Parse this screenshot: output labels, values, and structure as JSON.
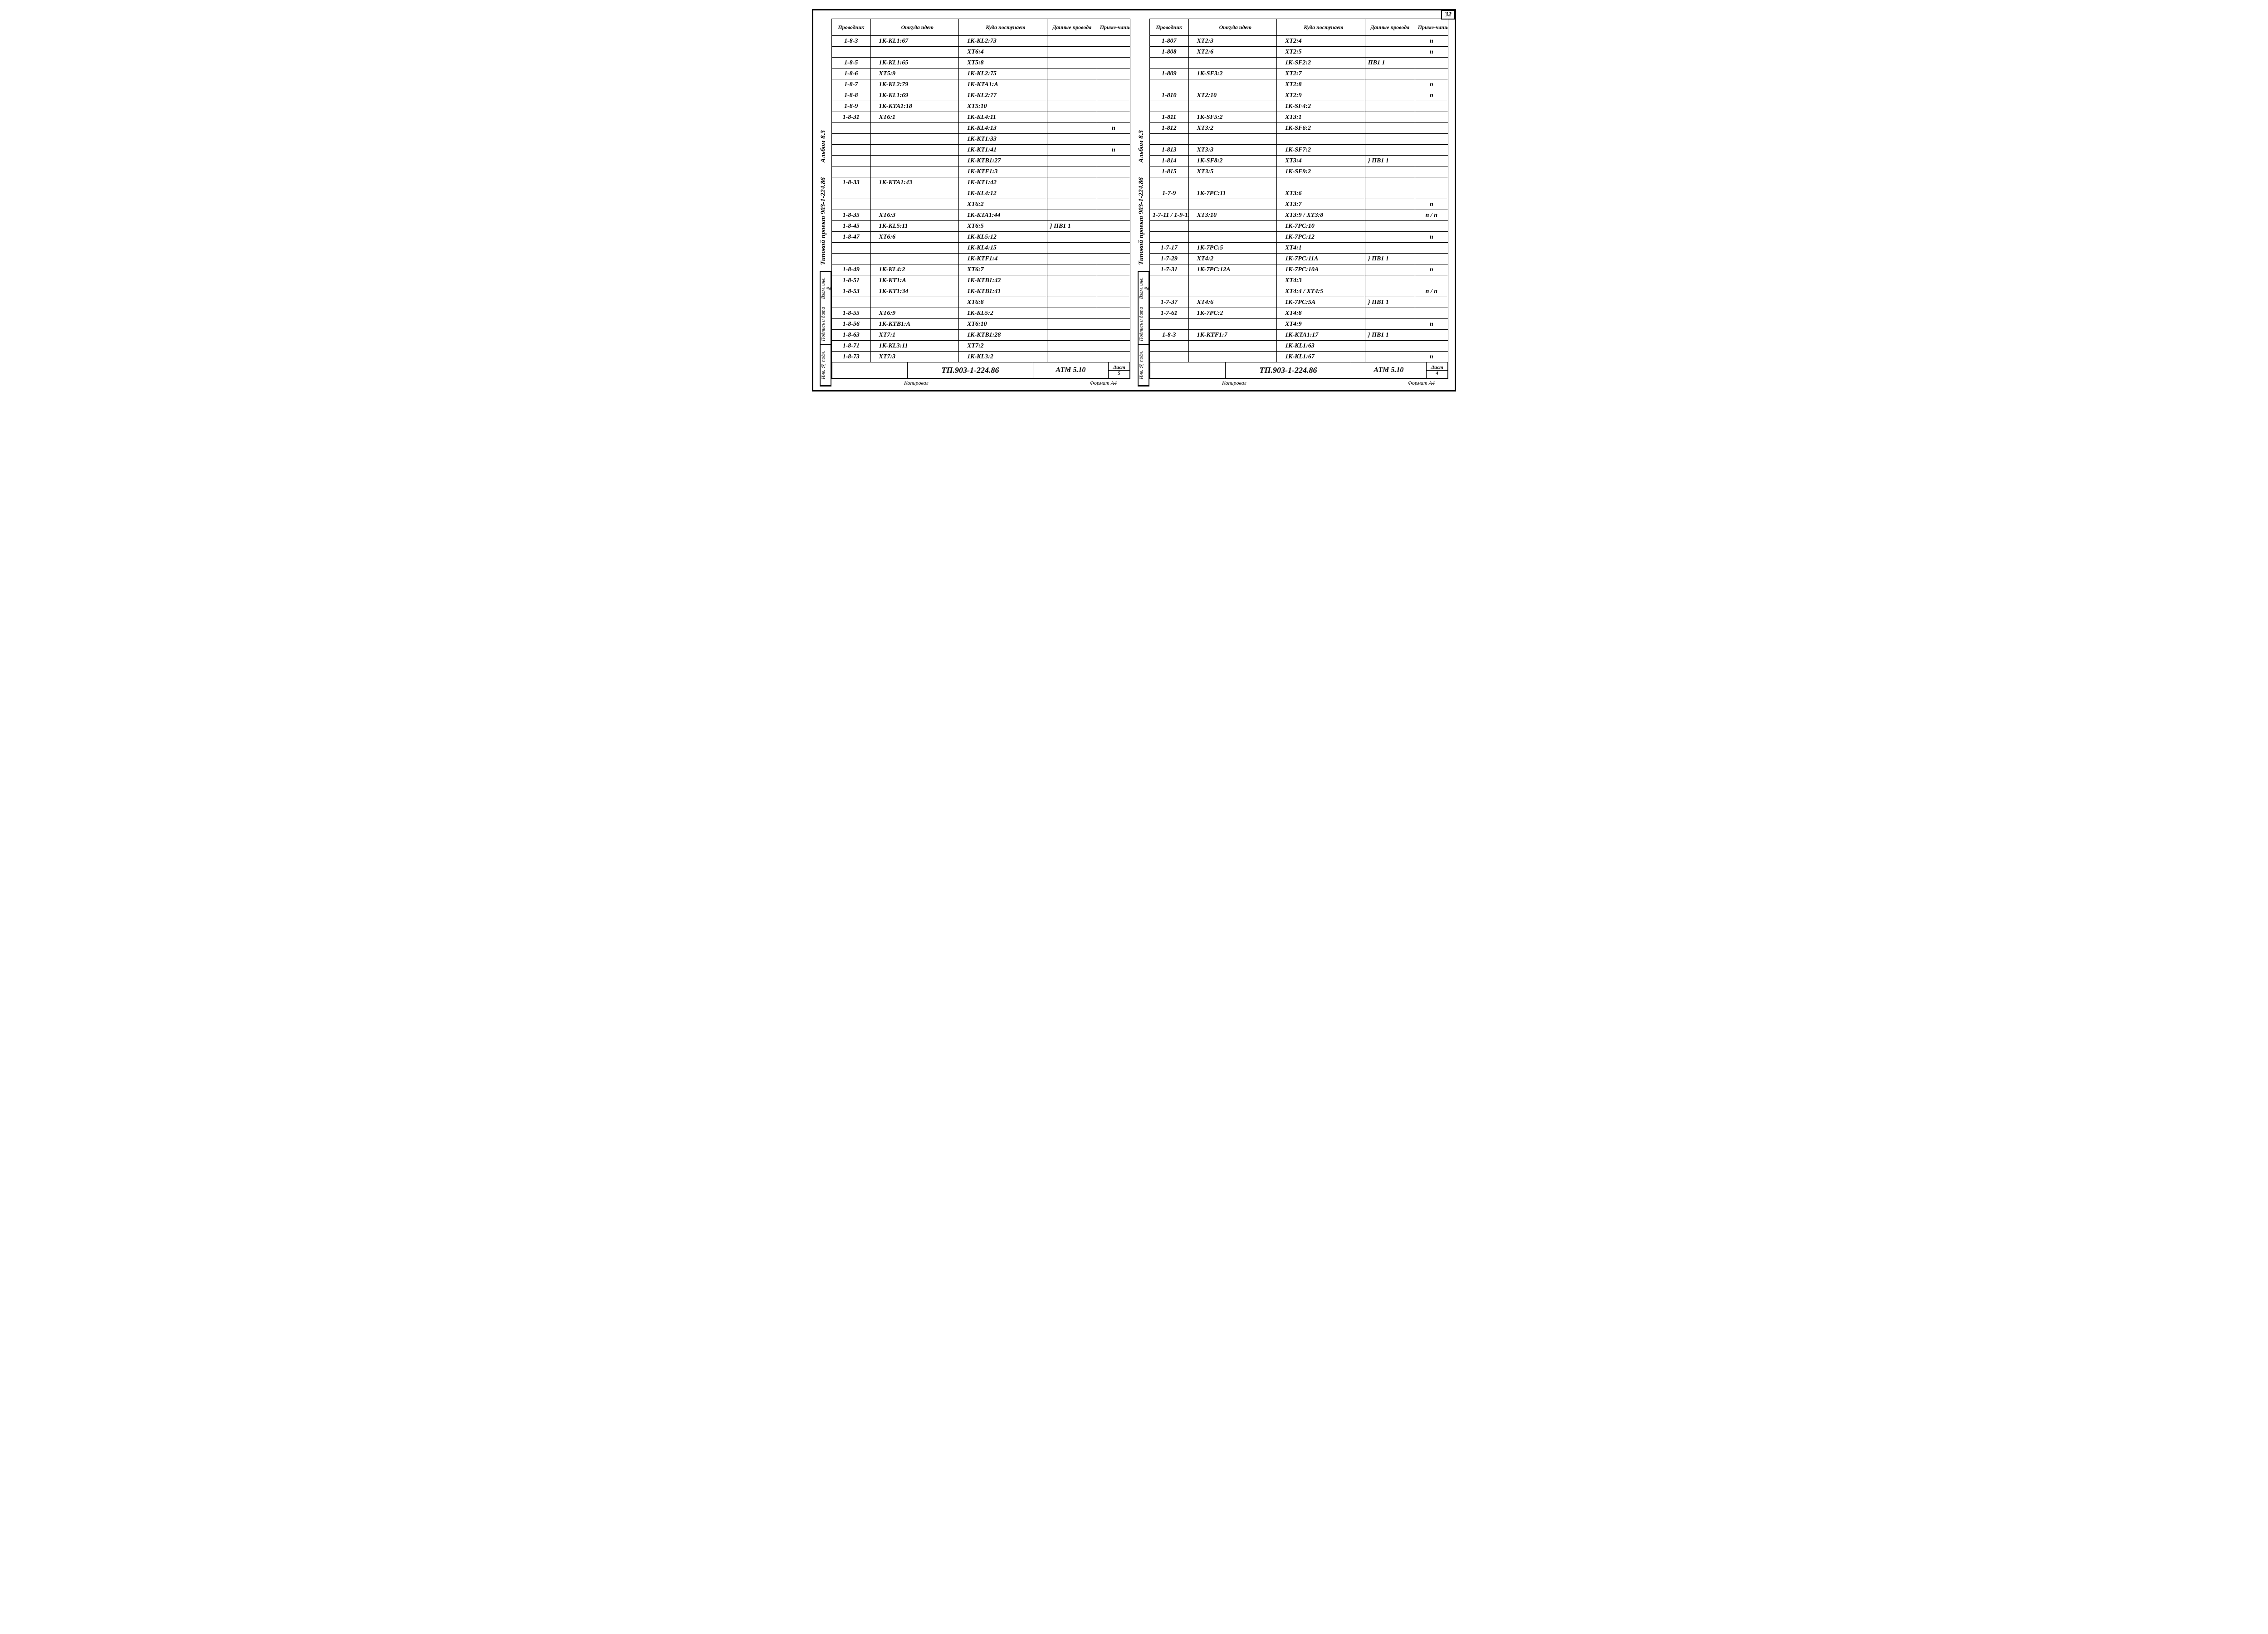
{
  "page_number": "32",
  "shared": {
    "headers": [
      "Проводник",
      "Откуда идет",
      "Куда поступает",
      "Данные провода",
      "Приме-чание"
    ],
    "side_upper": [
      "Альбом 8.3",
      "Типовой проект 903-1-224.86"
    ],
    "side_cells": [
      "Взам. инв. №",
      "Подпись и дата",
      "Инв. № подл."
    ],
    "footer_left": "Копировал",
    "footer_right": "Формат А4",
    "tb_code": "ТП.903-1-224.86",
    "tb_atm": "АТМ 5.10",
    "tb_sheet_label": "Лист"
  },
  "left": {
    "sheet_no": "5",
    "rows": [
      {
        "p": "1-8-3",
        "f": "1К-KL1:67",
        "t": "1К-KL2:73",
        "d": "",
        "n": ""
      },
      {
        "p": "",
        "f": "",
        "t": "ХТ6:4",
        "d": "",
        "n": ""
      },
      {
        "p": "1-8-5",
        "f": "1К-KL1:65",
        "t": "ХТ5:8",
        "d": "",
        "n": ""
      },
      {
        "p": "1-8-6",
        "f": "ХТ5:9",
        "t": "1К-KL2:75",
        "d": "",
        "n": ""
      },
      {
        "p": "1-8-7",
        "f": "1К-KL2:79",
        "t": "1К-КТА1:А",
        "d": "",
        "n": ""
      },
      {
        "p": "1-8-8",
        "f": "1К-KL1:69",
        "t": "1К-KL2:77",
        "d": "",
        "n": ""
      },
      {
        "p": "1-8-9",
        "f": "1К-КТА1:18",
        "t": "ХТ5:10",
        "d": "",
        "n": ""
      },
      {
        "p": "1-8-31",
        "f": "ХТ6:1",
        "t": "1К-KL4:11",
        "d": "",
        "n": ""
      },
      {
        "p": "",
        "f": "",
        "t": "1К-KL4:13",
        "d": "",
        "n": "п"
      },
      {
        "p": "",
        "f": "",
        "t": "1К-КТ1:33",
        "d": "",
        "n": ""
      },
      {
        "p": "",
        "f": "",
        "t": "1К-КТ1:41",
        "d": "",
        "n": "п"
      },
      {
        "p": "",
        "f": "",
        "t": "1К-КТВ1:27",
        "d": "",
        "n": ""
      },
      {
        "p": "",
        "f": "",
        "t": "1К-КТF1:3",
        "d": "",
        "n": ""
      },
      {
        "p": "1-8-33",
        "f": "1К-КТА1:43",
        "t": "1К-КТ1:42",
        "d": "",
        "n": ""
      },
      {
        "p": "",
        "f": "",
        "t": "1К-KL4:12",
        "d": "",
        "n": ""
      },
      {
        "p": "",
        "f": "",
        "t": "ХТ6:2",
        "d": "",
        "n": ""
      },
      {
        "p": "1-8-35",
        "f": "ХТ6:3",
        "t": "1К-КТА1:44",
        "d": "",
        "n": ""
      },
      {
        "p": "1-8-45",
        "f": "1К-KL5:11",
        "t": "ХТ6:5",
        "d": "} ПВ1   1",
        "n": ""
      },
      {
        "p": "1-8-47",
        "f": "ХТ6:6",
        "t": "1К-KL5:12",
        "d": "",
        "n": ""
      },
      {
        "p": "",
        "f": "",
        "t": "1К-KL4:15",
        "d": "",
        "n": ""
      },
      {
        "p": "",
        "f": "",
        "t": "1К-КТF1:4",
        "d": "",
        "n": ""
      },
      {
        "p": "1-8-49",
        "f": "1К-KL4:2",
        "t": "ХТ6:7",
        "d": "",
        "n": ""
      },
      {
        "p": "1-8-51",
        "f": "1К-КТ1:А",
        "t": "1К-КТВ1:42",
        "d": "",
        "n": ""
      },
      {
        "p": "1-8-53",
        "f": "1К-КТ1:34",
        "t": "1К-КТВ1:41",
        "d": "",
        "n": ""
      },
      {
        "p": "",
        "f": "",
        "t": "ХТ6:8",
        "d": "",
        "n": ""
      },
      {
        "p": "1-8-55",
        "f": "ХТ6:9",
        "t": "1К-KL5:2",
        "d": "",
        "n": ""
      },
      {
        "p": "1-8-56",
        "f": "1К-КТВ1:А",
        "t": "ХТ6:10",
        "d": "",
        "n": ""
      },
      {
        "p": "1-8-63",
        "f": "ХТ7:1",
        "t": "1К-КТВ1:28",
        "d": "",
        "n": ""
      },
      {
        "p": "1-8-71",
        "f": "1К-KL3:11",
        "t": "ХТ7:2",
        "d": "",
        "n": ""
      },
      {
        "p": "1-8-73",
        "f": "ХТ7:3",
        "t": "1К-KL3:2",
        "d": "",
        "n": ""
      }
    ]
  },
  "right": {
    "sheet_no": "4",
    "rows": [
      {
        "p": "1-807",
        "f": "ХТ2:3",
        "t": "ХТ2:4",
        "d": "",
        "n": "п"
      },
      {
        "p": "1-808",
        "f": "ХТ2:6",
        "t": "ХТ2:5",
        "d": "",
        "n": "п"
      },
      {
        "p": "",
        "f": "",
        "t": "1К-SF2:2",
        "d": "ПВ1   1",
        "n": ""
      },
      {
        "p": "1-809",
        "f": "1К-SF3:2",
        "t": "ХТ2:7",
        "d": "",
        "n": ""
      },
      {
        "p": "",
        "f": "",
        "t": "ХТ2:8",
        "d": "",
        "n": "п"
      },
      {
        "p": "1-810",
        "f": "ХТ2:10",
        "t": "ХТ2:9",
        "d": "",
        "n": "п"
      },
      {
        "p": "",
        "f": "",
        "t": "1К-SF4:2",
        "d": "",
        "n": ""
      },
      {
        "p": "1-811",
        "f": "1К-SF5:2",
        "t": "ХТ3:1",
        "d": "",
        "n": ""
      },
      {
        "p": "1-812",
        "f": "ХТ3:2",
        "t": "1К-SF6:2",
        "d": "",
        "n": ""
      },
      {
        "p": "",
        "f": "",
        "t": "",
        "d": "",
        "n": ""
      },
      {
        "p": "1-813",
        "f": "ХТ3:3",
        "t": "1К-SF7:2",
        "d": "",
        "n": ""
      },
      {
        "p": "1-814",
        "f": "1К-SF8:2",
        "t": "ХТ3:4",
        "d": "} ПВ1   1",
        "n": ""
      },
      {
        "p": "1-815",
        "f": "ХТ3:5",
        "t": "1К-SF9:2",
        "d": "",
        "n": ""
      },
      {
        "p": "",
        "f": "",
        "t": "",
        "d": "",
        "n": ""
      },
      {
        "p": "1-7-9",
        "f": "1К-7РС:11",
        "t": "ХТ3:6",
        "d": "",
        "n": ""
      },
      {
        "p": "",
        "f": "",
        "t": "ХТ3:7",
        "d": "",
        "n": "п"
      },
      {
        "p": "1-7-11 / 1-9-11",
        "f": "ХТ3:10",
        "t": "ХТ3:9 / ХТ3:8",
        "d": "",
        "n": "п / п",
        "small": true
      },
      {
        "p": "",
        "f": "",
        "t": "1К-7РС:10",
        "d": "",
        "n": ""
      },
      {
        "p": "",
        "f": "",
        "t": "1К-7РС:12",
        "d": "",
        "n": "п"
      },
      {
        "p": "1-7-17",
        "f": "1К-7РС:5",
        "t": "ХТ4:1",
        "d": "",
        "n": ""
      },
      {
        "p": "1-7-29",
        "f": "ХТ4:2",
        "t": "1К-7РС:11А",
        "d": "} ПВ1   1",
        "n": ""
      },
      {
        "p": "1-7-31",
        "f": "1К-7РС:12А",
        "t": "1К-7РС:10А",
        "d": "",
        "n": "п"
      },
      {
        "p": "",
        "f": "",
        "t": "ХТ4:3",
        "d": "",
        "n": ""
      },
      {
        "p": "",
        "f": "",
        "t": "ХТ4:4 / ХТ4:5",
        "d": "",
        "n": "п / п",
        "small": true
      },
      {
        "p": "1-7-37",
        "f": "ХТ4:6",
        "t": "1К-7РС:5А",
        "d": "}  ПВ1  1",
        "n": ""
      },
      {
        "p": "1-7-61",
        "f": "1К-7РС:2",
        "t": "ХТ4:8",
        "d": "",
        "n": ""
      },
      {
        "p": "",
        "f": "",
        "t": "ХТ4:9",
        "d": "",
        "n": "п"
      },
      {
        "p": "1-8-3",
        "f": "1К-КТF1:7",
        "t": "1К-КТА1:17",
        "d": "} ПВ1   1",
        "n": ""
      },
      {
        "p": "",
        "f": "",
        "t": "1К-KL1:63",
        "d": "",
        "n": ""
      },
      {
        "p": "",
        "f": "",
        "t": "1К-KL1:67",
        "d": "",
        "n": "п"
      }
    ]
  }
}
